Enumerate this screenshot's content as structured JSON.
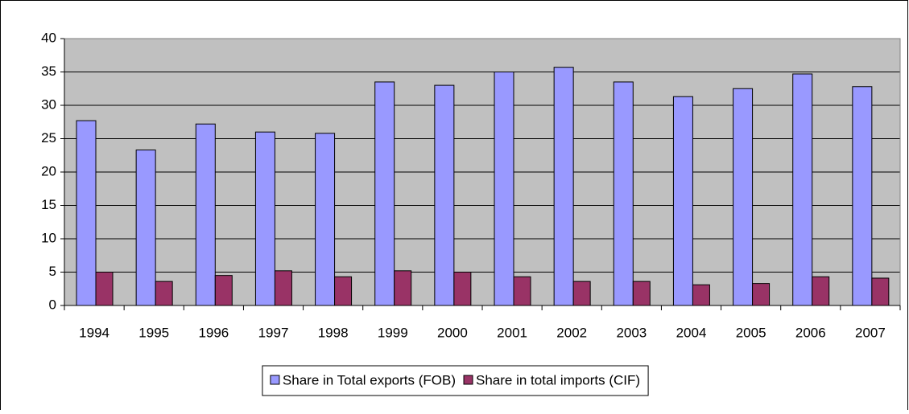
{
  "chart_data": {
    "type": "bar",
    "categories": [
      "1994",
      "1995",
      "1996",
      "1997",
      "1998",
      "1999",
      "2000",
      "2001",
      "2002",
      "2003",
      "2004",
      "2005",
      "2006",
      "2007"
    ],
    "series": [
      {
        "name": "Share in Total exports (FOB)",
        "color": "#9999ff",
        "values": [
          27.7,
          23.3,
          27.2,
          26.0,
          25.8,
          33.5,
          33.0,
          35.0,
          35.7,
          33.5,
          31.3,
          32.5,
          34.7,
          32.8
        ]
      },
      {
        "name": "Share in total imports (CIF)",
        "color": "#993366",
        "values": [
          5.0,
          3.6,
          4.5,
          5.2,
          4.3,
          5.2,
          5.0,
          4.3,
          3.6,
          3.6,
          3.1,
          3.3,
          4.3,
          4.1
        ]
      }
    ],
    "ylim": [
      0,
      40
    ],
    "yticks": [
      0,
      5,
      10,
      15,
      20,
      25,
      30,
      35,
      40
    ],
    "grid": true,
    "legend": "bottom"
  }
}
